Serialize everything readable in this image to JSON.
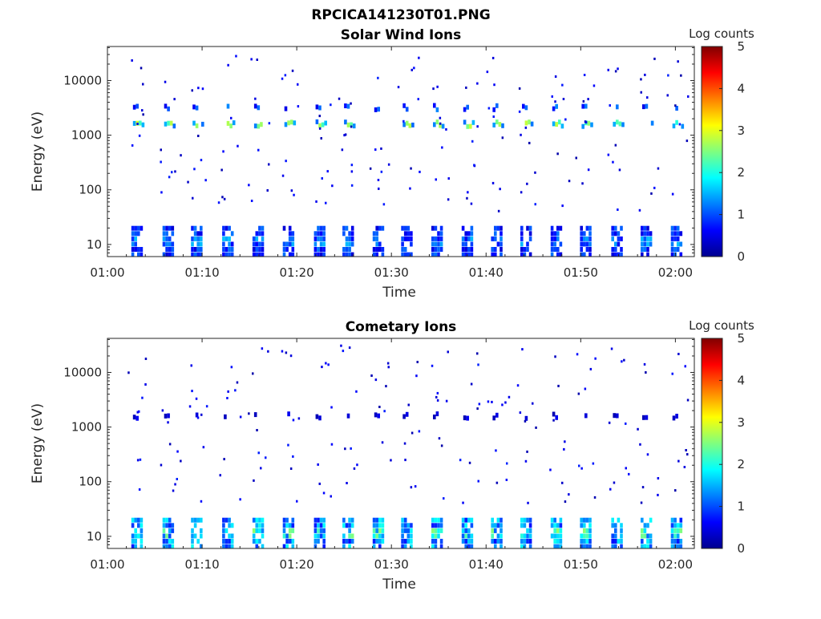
{
  "figure_title": "RPCICA141230T01.PNG",
  "chart_data": [
    {
      "type": "heatmap",
      "title": "Solar Wind Ions",
      "xlabel": "Time",
      "ylabel": "Energy (eV)",
      "x_ticks": [
        "01:00",
        "01:10",
        "01:20",
        "01:30",
        "01:40",
        "01:50",
        "02:00"
      ],
      "x_range": [
        "01:00",
        "02:02"
      ],
      "y_scale": "log",
      "y_ticks": [
        {
          "value": 10,
          "label": "10"
        },
        {
          "value": 100,
          "label": "100"
        },
        {
          "value": 1000,
          "label": "1000"
        },
        {
          "value": 10000,
          "label": "10000"
        }
      ],
      "y_range": [
        6,
        42000
      ],
      "colorbar": {
        "label": "Log counts",
        "range": [
          0,
          5
        ],
        "ticks": [
          "0",
          "1",
          "2",
          "3",
          "4",
          "5"
        ],
        "colormap": "jet"
      },
      "sweep_times_min": [
        3.2,
        6.5,
        9.5,
        12.8,
        16.0,
        19.2,
        22.5,
        25.5,
        28.7,
        31.7,
        34.9,
        38.1,
        41.2,
        44.3,
        47.5,
        50.6,
        53.9,
        57.0,
        60.2
      ],
      "features": [
        {
          "energy_ev": 1600,
          "peak_log_counts": 2.9
        },
        {
          "energy_ev": 3200,
          "peak_log_counts": 1.3
        },
        {
          "energy_ev": 14,
          "peak_log_counts": 1.6
        }
      ]
    },
    {
      "type": "heatmap",
      "title": "Cometary Ions",
      "xlabel": "Time",
      "ylabel": "Energy (eV)",
      "x_ticks": [
        "01:00",
        "01:10",
        "01:20",
        "01:30",
        "01:40",
        "01:50",
        "02:00"
      ],
      "x_range": [
        "01:00",
        "02:02"
      ],
      "y_scale": "log",
      "y_ticks": [
        {
          "value": 10,
          "label": "10"
        },
        {
          "value": 100,
          "label": "100"
        },
        {
          "value": 1000,
          "label": "1000"
        },
        {
          "value": 10000,
          "label": "10000"
        }
      ],
      "y_range": [
        6,
        42000
      ],
      "colorbar": {
        "label": "Log counts",
        "range": [
          0,
          5
        ],
        "ticks": [
          "0",
          "1",
          "2",
          "3",
          "4",
          "5"
        ],
        "colormap": "jet"
      },
      "sweep_times_min": [
        3.2,
        6.5,
        9.5,
        12.8,
        16.0,
        19.2,
        22.5,
        25.5,
        28.7,
        31.7,
        34.9,
        38.1,
        41.2,
        44.3,
        47.5,
        50.6,
        53.9,
        57.0,
        60.2
      ],
      "features": [
        {
          "energy_ev": 12,
          "peak_log_counts": 2.6
        },
        {
          "energy_ev": 1600,
          "peak_log_counts": 0.6
        }
      ]
    }
  ]
}
